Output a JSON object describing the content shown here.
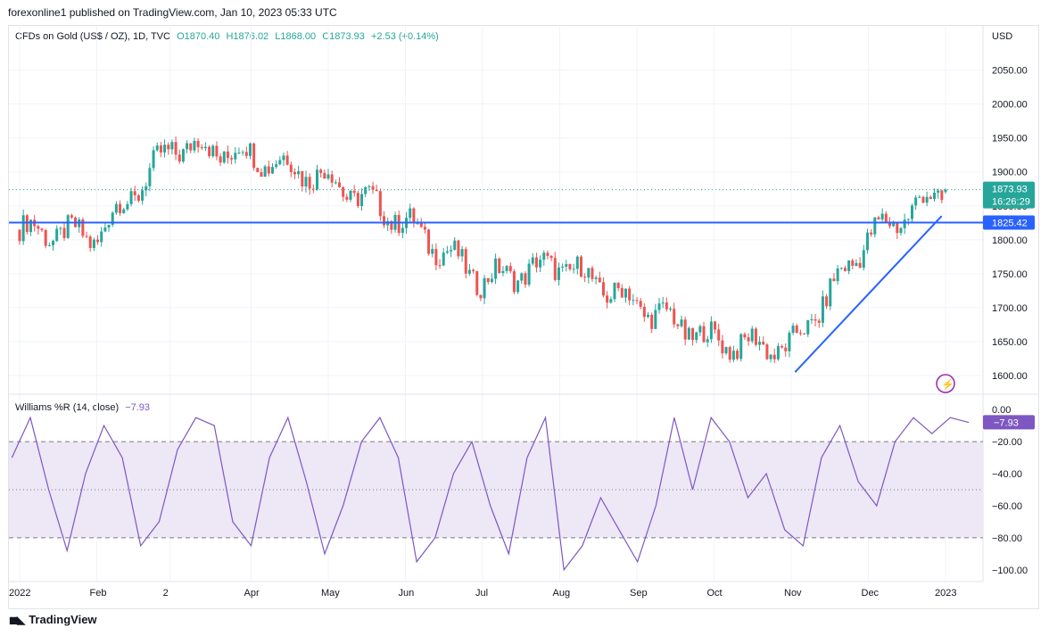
{
  "header": {
    "published": "forexonline1 published on TradingView.com, Jan 10, 2023 05:33 UTC"
  },
  "legend": {
    "symbol": "CFDs on Gold (US$ / OZ), 1D, TVC",
    "open": "O1870.40",
    "high": "H1876.02",
    "low": "L1868.00",
    "close": "C1873.93",
    "change": "+2.53 (+0.14%)"
  },
  "currency": "USD",
  "price_badge": {
    "price": "1873.93",
    "countdown": "16:26:29"
  },
  "level_badge": "1825.42",
  "indicator": {
    "title": "Williams %R (14, close)",
    "value": "−7.93",
    "badge": "−7.93"
  },
  "footer": {
    "brand": "TradingView"
  },
  "colors": {
    "up": "#26a69a",
    "down": "#ef5350",
    "level_line": "#2962ff",
    "trend_line": "#2962ff",
    "wr_line": "#7e57c2",
    "wr_band": "#ede7f6"
  },
  "chart_data": [
    {
      "type": "candlestick",
      "title": "CFDs on Gold (US$ / OZ), 1D, TVC",
      "x_tick_labels": [
        "2022",
        "Feb",
        "2",
        "Apr",
        "May",
        "Jun",
        "Jul",
        "Aug",
        "Sep",
        "Oct",
        "Nov",
        "Dec",
        "2023"
      ],
      "y_tick_labels": [
        "2050.00",
        "2000.00",
        "1950.00",
        "1900.00",
        "1850.00",
        "1800.00",
        "1750.00",
        "1700.00",
        "1650.00",
        "1600.00"
      ],
      "ylim": [
        1575,
        2085
      ],
      "grid": true,
      "series": [
        {
          "name": "close",
          "x": [
            "Jan 2022",
            "Feb 2022",
            "Mar 2022",
            "Apr 2022",
            "May 2022",
            "Jun 2022",
            "Jul 2022",
            "Aug 2022",
            "Sep 2022",
            "Oct 2022",
            "Nov 2022",
            "Dec 2022",
            "Jan 2023"
          ],
          "values": [
            1815,
            1805,
            1940,
            1925,
            1890,
            1825,
            1740,
            1765,
            1705,
            1650,
            1640,
            1805,
            1874
          ]
        }
      ],
      "last": {
        "open": 1870.4,
        "high": 1876.02,
        "low": 1868.0,
        "close": 1873.93
      },
      "horizontal_level": 1825.42,
      "trendline": {
        "from": [
          "Nov 2022",
          1605
        ],
        "to": [
          "Jan 2023",
          1835
        ]
      }
    },
    {
      "type": "line",
      "title": "Williams %R (14, close)",
      "y_tick_labels": [
        "0.00",
        "−20.00",
        "−40.00",
        "−60.00",
        "−80.00",
        "−100.00"
      ],
      "ylim": [
        -104,
        4
      ],
      "levels": [
        -20,
        -50,
        -80
      ],
      "series": [
        {
          "name": "Williams %R",
          "values": [
            -30,
            -5,
            -50,
            -88,
            -40,
            -10,
            -30,
            -85,
            -70,
            -25,
            -5,
            -10,
            -70,
            -85,
            -30,
            -5,
            -45,
            -90,
            -60,
            -20,
            -5,
            -30,
            -95,
            -80,
            -40,
            -20,
            -60,
            -90,
            -30,
            -5,
            -100,
            -85,
            -55,
            -75,
            -95,
            -60,
            -5,
            -50,
            -5,
            -20,
            -55,
            -40,
            -75,
            -85,
            -30,
            -10,
            -45,
            -60,
            -20,
            -5,
            -15,
            -5,
            -8
          ]
        }
      ],
      "last": -7.93
    }
  ]
}
